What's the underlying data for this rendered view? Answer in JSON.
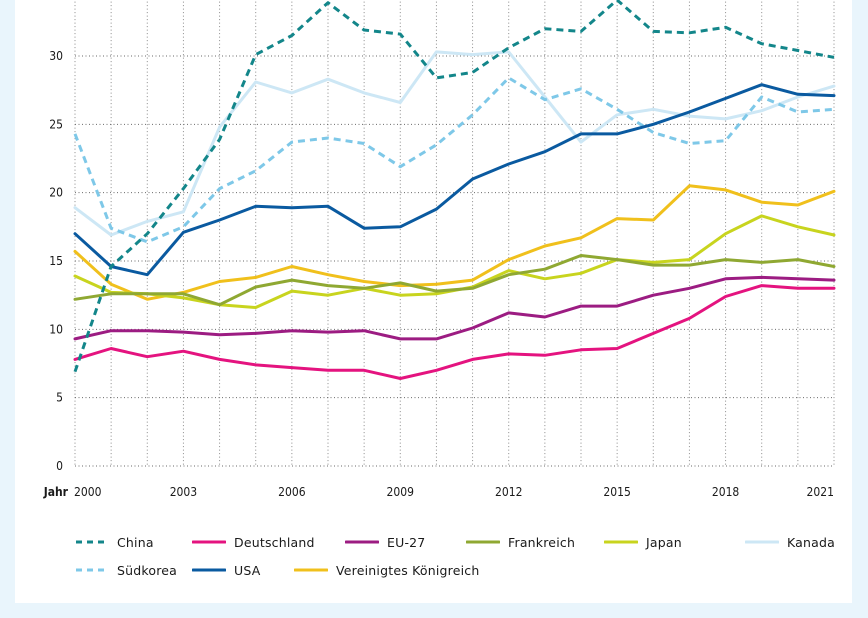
{
  "chart_data": {
    "type": "line",
    "title": "",
    "xlabel": "Jahr",
    "ylabel": "",
    "ylim": [
      0,
      35
    ],
    "yticks": [
      0,
      5,
      10,
      15,
      20,
      25,
      30
    ],
    "xticks": [
      2000,
      2003,
      2006,
      2009,
      2012,
      2015,
      2018,
      2021
    ],
    "grid": true,
    "legend_position": "bottom",
    "x": [
      2000,
      2001,
      2002,
      2003,
      2004,
      2005,
      2006,
      2007,
      2008,
      2009,
      2010,
      2011,
      2012,
      2013,
      2014,
      2015,
      2016,
      2017,
      2018,
      2019,
      2020,
      2021
    ],
    "series": [
      {
        "name": "China",
        "color": "#13868a",
        "dash": true,
        "values": [
          6.9,
          14.6,
          17.0,
          20.3,
          23.9,
          30.1,
          31.5,
          33.9,
          31.9,
          31.6,
          28.4,
          28.8,
          30.6,
          32.0,
          31.8,
          34.1,
          31.8,
          31.7,
          32.1,
          30.9,
          30.4,
          29.9
        ]
      },
      {
        "name": "Deutschland",
        "color": "#e4137f",
        "dash": false,
        "values": [
          7.8,
          8.6,
          8.0,
          8.4,
          7.8,
          7.4,
          7.2,
          7.0,
          7.0,
          6.4,
          7.0,
          7.8,
          8.2,
          8.1,
          8.5,
          8.6,
          9.7,
          10.8,
          12.4,
          13.2,
          13.0,
          13.0
        ]
      },
      {
        "name": "EU-27",
        "color": "#9c1c82",
        "dash": false,
        "values": [
          9.3,
          9.9,
          9.9,
          9.8,
          9.6,
          9.7,
          9.9,
          9.8,
          9.9,
          9.3,
          9.3,
          10.1,
          11.2,
          10.9,
          11.7,
          11.7,
          12.5,
          13.0,
          13.7,
          13.8,
          13.7,
          13.6
        ]
      },
      {
        "name": "Frankreich",
        "color": "#8fa832",
        "dash": false,
        "values": [
          12.2,
          12.6,
          12.6,
          12.6,
          11.8,
          13.1,
          13.6,
          13.2,
          13.0,
          13.4,
          12.8,
          13.0,
          14.0,
          14.4,
          15.4,
          15.1,
          14.7,
          14.7,
          15.1,
          14.9,
          15.1,
          14.6
        ]
      },
      {
        "name": "Japan",
        "color": "#c8d41e",
        "dash": false,
        "values": [
          13.9,
          12.7,
          12.6,
          12.3,
          11.8,
          11.6,
          12.8,
          12.5,
          13.0,
          12.5,
          12.6,
          13.1,
          14.3,
          13.7,
          14.1,
          15.1,
          14.9,
          15.1,
          17.0,
          18.3,
          17.5,
          16.9
        ]
      },
      {
        "name": "Kanada",
        "color": "#cde7f5",
        "dash": false,
        "values": [
          18.9,
          16.9,
          17.9,
          18.6,
          24.8,
          28.1,
          27.3,
          28.3,
          27.3,
          26.6,
          30.3,
          30.1,
          30.3,
          27.0,
          23.7,
          25.7,
          26.1,
          25.6,
          25.4,
          26.0,
          27.0,
          27.8
        ]
      },
      {
        "name": "Südkorea",
        "color": "#7ec8e8",
        "dash": true,
        "values": [
          24.3,
          17.4,
          16.4,
          17.5,
          20.3,
          21.6,
          23.7,
          24.0,
          23.6,
          21.9,
          23.5,
          25.7,
          28.4,
          26.8,
          27.6,
          26.1,
          24.4,
          23.6,
          23.8,
          27.0,
          25.9,
          26.1
        ]
      },
      {
        "name": "USA",
        "color": "#0a5aa0",
        "dash": false,
        "values": [
          17.0,
          14.6,
          14.0,
          17.1,
          18.0,
          19.0,
          18.9,
          19.0,
          17.4,
          17.5,
          18.8,
          21.0,
          22.1,
          23.0,
          24.3,
          24.3,
          25.0,
          25.9,
          26.9,
          27.9,
          27.2,
          27.1
        ]
      },
      {
        "name": "Vereinigtes Königreich",
        "color": "#f0c01c",
        "dash": false,
        "values": [
          15.7,
          13.3,
          12.2,
          12.7,
          13.5,
          13.8,
          14.6,
          14.0,
          13.5,
          13.2,
          13.3,
          13.6,
          15.1,
          16.1,
          16.7,
          18.1,
          18.0,
          20.5,
          20.2,
          19.3,
          19.1,
          20.1
        ]
      }
    ]
  }
}
